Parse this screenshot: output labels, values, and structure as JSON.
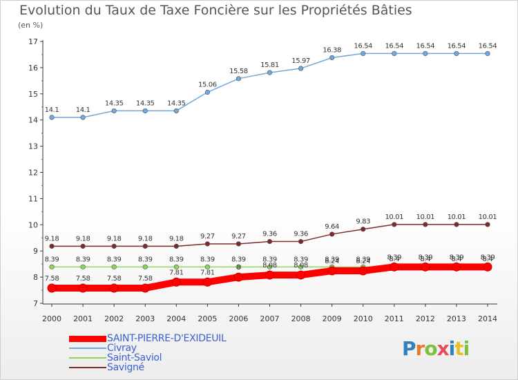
{
  "title": "Evolution du Taux de Taxe Foncière sur les Propriétés Bâties",
  "unit_label": "(en %)",
  "logo": {
    "text": "Proxiti",
    "colors": [
      "#2f7fc1",
      "#e8792a",
      "#7fbf3f",
      "#e84a5f",
      "#2f7fc1",
      "#e8c12a",
      "#7fbf3f"
    ]
  },
  "chart_data": {
    "type": "line",
    "title": "Evolution du Taux de Taxe Foncière sur les Propriétés Bâties",
    "ylabel": "(en %)",
    "xlabel": "",
    "x": [
      "2000",
      "2001",
      "2002",
      "2003",
      "2004",
      "2005",
      "2006",
      "2007",
      "2008",
      "2009",
      "2010",
      "2011",
      "2012",
      "2013",
      "2014"
    ],
    "ylim": [
      7,
      17
    ],
    "yticks": [
      "7",
      "8",
      "9",
      "10",
      "11",
      "12",
      "13",
      "14",
      "15",
      "16",
      "17"
    ],
    "legend_position": "bottom-left",
    "series": [
      {
        "name": "SAINT-PIERRE-D'EXIDEUIL",
        "color": "#ff0000",
        "values": [
          7.58,
          7.58,
          7.58,
          7.58,
          7.81,
          7.81,
          8.0,
          8.08,
          8.08,
          8.24,
          8.24,
          8.39,
          8.39,
          8.39,
          8.39
        ],
        "labels": [
          "7.58",
          "7.58",
          "7.58",
          "7.58",
          "7.81",
          "7.81",
          "8",
          "8.08",
          "8.08",
          "8.24",
          "8.24",
          "8.39",
          "8.39",
          "8.39",
          "8.39"
        ]
      },
      {
        "name": "Civray",
        "color": "#6fa8dc",
        "values": [
          14.1,
          14.1,
          14.35,
          14.35,
          14.35,
          15.06,
          15.58,
          15.81,
          15.97,
          16.38,
          16.54,
          16.54,
          16.54,
          16.54,
          16.54
        ],
        "labels": [
          "14.1",
          "14.1",
          "14.35",
          "14.35",
          "14.35",
          "15.06",
          "15.58",
          "15.81",
          "15.97",
          "16.38",
          "16.54",
          "16.54",
          "16.54",
          "16.54",
          "16.54"
        ]
      },
      {
        "name": "Saint-Saviol",
        "color": "#8fd35a",
        "values": [
          8.39,
          8.39,
          8.39,
          8.39,
          8.39,
          8.39,
          8.39,
          8.39,
          8.39,
          8.39,
          8.39,
          8.4,
          8.4,
          8.4,
          8.4
        ],
        "labels": [
          "8.39",
          "8.39",
          "8.39",
          "8.39",
          "8.39",
          "8.39",
          "8.39",
          "8.39",
          "8.39",
          "8.39",
          "8.39",
          "8.4",
          "8.4",
          "8.4",
          "8.4"
        ]
      },
      {
        "name": "Savigné",
        "color": "#7b2b2b",
        "values": [
          9.18,
          9.18,
          9.18,
          9.18,
          9.18,
          9.27,
          9.27,
          9.36,
          9.36,
          9.64,
          9.83,
          10.01,
          10.01,
          10.01,
          10.01
        ],
        "labels": [
          "9.18",
          "9.18",
          "9.18",
          "9.18",
          "9.18",
          "9.27",
          "9.27",
          "9.36",
          "9.36",
          "9.64",
          "9.83",
          "10.01",
          "10.01",
          "10.01",
          "10.01"
        ]
      }
    ]
  }
}
